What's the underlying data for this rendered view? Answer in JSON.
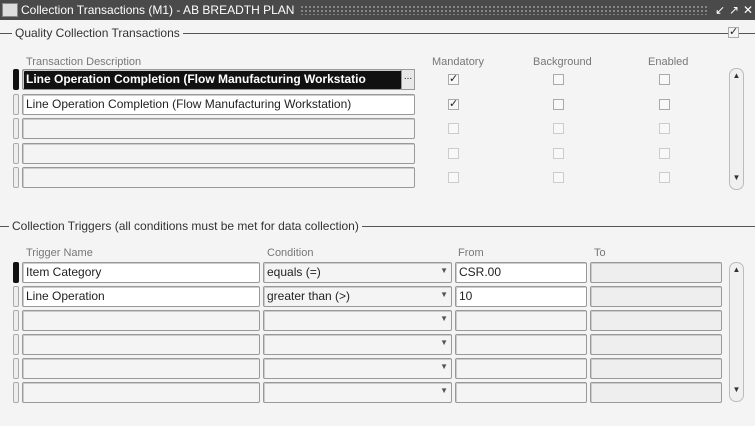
{
  "window": {
    "title": "Collection Transactions (M1) - AB BREADTH PLAN",
    "icon": "oracle-app-icon",
    "buttons": [
      "minimize",
      "maximize",
      "close"
    ]
  },
  "transactions": {
    "frame_title": "Quality Collection Transactions",
    "frame_checked": true,
    "headers": {
      "description": "Transaction Description",
      "mandatory": "Mandatory",
      "background": "Background",
      "enabled": "Enabled"
    },
    "rows": [
      {
        "description": "Line Operation Completion (Flow Manufacturing Workstatio",
        "mandatory": true,
        "background": false,
        "enabled": false
      },
      {
        "description": "Line Operation Completion (Flow Manufacturing Workstation)",
        "mandatory": true,
        "background": false,
        "enabled": false
      },
      {
        "description": "",
        "mandatory": false,
        "background": false,
        "enabled": false
      },
      {
        "description": "",
        "mandatory": false,
        "background": false,
        "enabled": false
      },
      {
        "description": "",
        "mandatory": false,
        "background": false,
        "enabled": false
      }
    ],
    "lov_label": "..."
  },
  "triggers": {
    "frame_title": "Collection Triggers (all conditions must be met for data collection)",
    "headers": {
      "name": "Trigger Name",
      "condition": "Condition",
      "from": "From",
      "to": "To"
    },
    "rows": [
      {
        "name": "Item Category",
        "condition": "equals (=)",
        "from": "CSR.00",
        "to": ""
      },
      {
        "name": "Line Operation",
        "condition": "greater than (>)",
        "from": "10",
        "to": ""
      },
      {
        "name": "",
        "condition": "",
        "from": "",
        "to": ""
      },
      {
        "name": "",
        "condition": "",
        "from": "",
        "to": ""
      },
      {
        "name": "",
        "condition": "",
        "from": "",
        "to": ""
      },
      {
        "name": "",
        "condition": "",
        "from": "",
        "to": ""
      }
    ]
  }
}
